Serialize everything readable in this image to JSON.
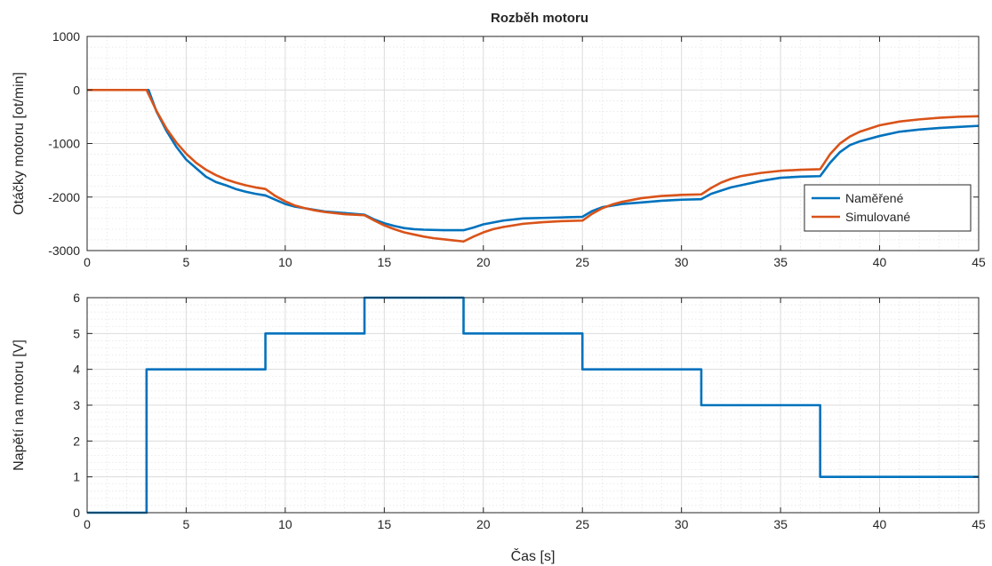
{
  "figure_title": "Rozběh motoru",
  "colors": {
    "measured": "#0072BD",
    "simulated": "#D95319",
    "voltage": "#0072BD"
  },
  "chart_data": [
    {
      "type": "line",
      "title": "Rozběh motoru",
      "xlabel": "",
      "ylabel": "Otáčky motoru [ot/min]",
      "xlim": [
        0,
        45
      ],
      "ylim": [
        -3000,
        1000
      ],
      "xticks": [
        0,
        5,
        10,
        15,
        20,
        25,
        30,
        35,
        40,
        45
      ],
      "yticks": [
        -3000,
        -2000,
        -1000,
        0,
        1000
      ],
      "grid": true,
      "minor_grid": true,
      "legend_location": "bottom-right",
      "series": [
        {
          "name": "Naměřené",
          "color": "#0072BD",
          "x": [
            0,
            3.1,
            3.3,
            3.5,
            4,
            4.5,
            5,
            5.5,
            6,
            6.5,
            7,
            7.5,
            8,
            8.5,
            9,
            9.5,
            10,
            10.5,
            11,
            12,
            13,
            14,
            14.5,
            15,
            15.5,
            16,
            16.5,
            17,
            18,
            19,
            19.5,
            20,
            21,
            22,
            23,
            24,
            25,
            25.5,
            26,
            27,
            28,
            29,
            30,
            31,
            31.5,
            32,
            32.5,
            33,
            34,
            35,
            36,
            37,
            37.5,
            38,
            38.5,
            39,
            40,
            41,
            42,
            43,
            44,
            45
          ],
          "y": [
            0,
            0,
            -200,
            -400,
            -760,
            -1060,
            -1300,
            -1460,
            -1620,
            -1720,
            -1780,
            -1850,
            -1900,
            -1940,
            -1970,
            -2050,
            -2130,
            -2180,
            -2210,
            -2270,
            -2300,
            -2330,
            -2420,
            -2490,
            -2540,
            -2580,
            -2600,
            -2610,
            -2620,
            -2620,
            -2570,
            -2510,
            -2440,
            -2400,
            -2390,
            -2380,
            -2370,
            -2260,
            -2190,
            -2130,
            -2100,
            -2070,
            -2050,
            -2040,
            -1940,
            -1880,
            -1820,
            -1780,
            -1700,
            -1640,
            -1620,
            -1610,
            -1360,
            -1160,
            -1030,
            -960,
            -860,
            -780,
            -740,
            -710,
            -690,
            -670
          ]
        },
        {
          "name": "Simulované",
          "color": "#D95319",
          "x": [
            0,
            3,
            3.5,
            4,
            4.5,
            5,
            5.5,
            6,
            6.5,
            7,
            7.5,
            8,
            8.5,
            9,
            9.5,
            10,
            10.5,
            11,
            11.5,
            12,
            13,
            14,
            14.5,
            15,
            15.5,
            16,
            16.5,
            17,
            17.5,
            18,
            18.5,
            19,
            19.5,
            20,
            20.5,
            21,
            22,
            23,
            24,
            25,
            25.5,
            26,
            26.5,
            27,
            28,
            29,
            30,
            31,
            31.5,
            32,
            32.5,
            33,
            34,
            35,
            36,
            37,
            37.5,
            38,
            38.5,
            39,
            40,
            41,
            42,
            43,
            44,
            45
          ],
          "y": [
            0,
            0,
            -390,
            -720,
            -980,
            -1190,
            -1360,
            -1490,
            -1590,
            -1670,
            -1730,
            -1780,
            -1820,
            -1850,
            -1980,
            -2080,
            -2160,
            -2210,
            -2250,
            -2280,
            -2320,
            -2340,
            -2440,
            -2530,
            -2600,
            -2660,
            -2700,
            -2740,
            -2770,
            -2790,
            -2810,
            -2830,
            -2740,
            -2660,
            -2600,
            -2560,
            -2500,
            -2470,
            -2450,
            -2440,
            -2310,
            -2210,
            -2140,
            -2090,
            -2020,
            -1980,
            -1960,
            -1950,
            -1830,
            -1730,
            -1660,
            -1610,
            -1550,
            -1510,
            -1490,
            -1480,
            -1200,
            -1000,
            -870,
            -780,
            -660,
            -590,
            -550,
            -520,
            -500,
            -490
          ]
        }
      ]
    },
    {
      "type": "line",
      "title": "",
      "xlabel": "Čas [s]",
      "ylabel": "Napětí na motoru [V]",
      "xlim": [
        0,
        45
      ],
      "ylim": [
        0,
        6
      ],
      "xticks": [
        0,
        5,
        10,
        15,
        20,
        25,
        30,
        35,
        40,
        45
      ],
      "yticks": [
        0,
        1,
        2,
        3,
        4,
        5,
        6
      ],
      "grid": true,
      "minor_grid": true,
      "series": [
        {
          "color": "#0072BD",
          "x": [
            0,
            3,
            3,
            9,
            9,
            14,
            14,
            19,
            19,
            25,
            25,
            31,
            31,
            37,
            37,
            45
          ],
          "y": [
            0,
            0,
            4,
            4,
            5,
            5,
            6,
            6,
            5,
            5,
            4,
            4,
            3,
            3,
            1,
            1
          ]
        }
      ]
    }
  ]
}
